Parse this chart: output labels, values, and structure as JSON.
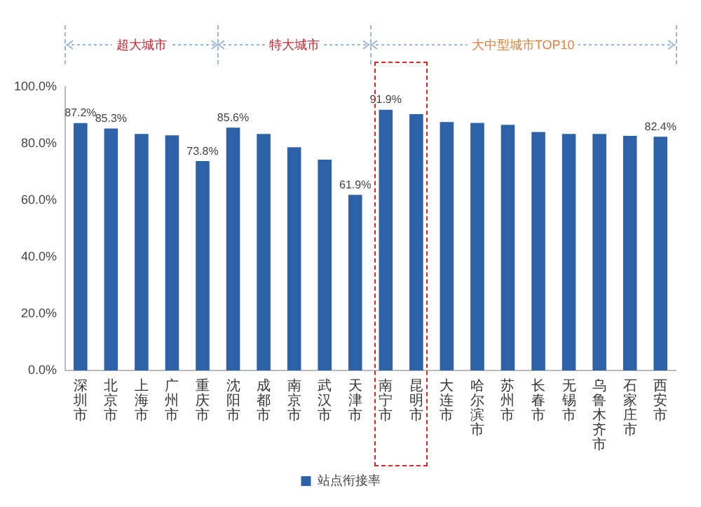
{
  "chart_data": {
    "type": "bar",
    "categories": [
      "深圳市",
      "北京市",
      "上海市",
      "广州市",
      "重庆市",
      "沈阳市",
      "成都市",
      "南京市",
      "武汉市",
      "天津市",
      "南宁市",
      "昆明市",
      "大连市",
      "哈尔滨市",
      "苏州市",
      "长春市",
      "无锡市",
      "乌鲁木齐市",
      "石家庄市",
      "西安市"
    ],
    "series": [
      {
        "name": "站点衔接率",
        "color": "#2e62a8",
        "values": [
          87.2,
          85.3,
          83.4,
          82.9,
          73.8,
          85.6,
          83.4,
          78.7,
          74.3,
          61.9,
          91.9,
          90.4,
          87.6,
          87.3,
          86.6,
          84.1,
          83.4,
          83.4,
          82.7,
          82.4
        ],
        "value_labels": [
          "87.2%",
          "85.3%",
          null,
          null,
          "73.8%",
          "85.6%",
          null,
          null,
          null,
          "61.9%",
          "91.9%",
          null,
          null,
          null,
          null,
          null,
          null,
          null,
          null,
          "82.4%"
        ]
      }
    ],
    "ylim": [
      0,
      100
    ],
    "yticks": [
      {
        "value": 0,
        "label": "0.0%"
      },
      {
        "value": 20,
        "label": "20.0%"
      },
      {
        "value": 40,
        "label": "40.0%"
      },
      {
        "value": 60,
        "label": "60.0%"
      },
      {
        "value": 80,
        "label": "80.0%"
      },
      {
        "value": 100,
        "label": "100.0%"
      }
    ],
    "grid": false,
    "legend": "bottom",
    "annotations": [
      "超大城市",
      "特大城市",
      "大中型城市TOP10"
    ]
  }
}
